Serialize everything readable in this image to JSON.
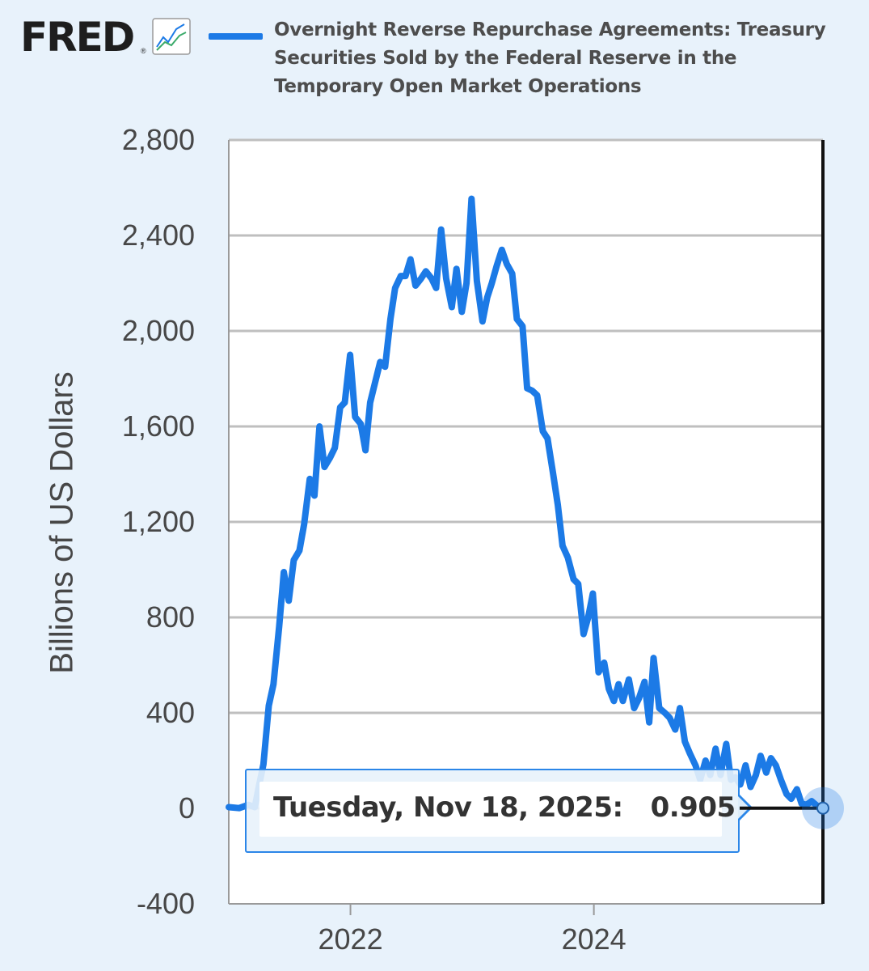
{
  "header": {
    "logo_text": "FRED",
    "logo_mark": "®",
    "logo_icon": "line-chart-icon",
    "series_title": "Overnight Reverse Repurchase Agreements: Treasury Securities Sold by the Federal Reserve in the Temporary Open Market Operations"
  },
  "tooltip": {
    "date": "Tuesday, Nov 18, 2025:",
    "value": "0.905"
  },
  "colors": {
    "series": "#1c7ae6",
    "background": "#e8f2fb",
    "plot_background": "#ffffff",
    "grid": "#bfbfbf"
  },
  "chart_data": {
    "type": "line",
    "ylabel": "Billions of US Dollars",
    "ylim": [
      -400,
      2800
    ],
    "yticks": [
      -400,
      0,
      400,
      800,
      1200,
      1600,
      2000,
      2400,
      2800
    ],
    "ytick_labels": [
      "-400",
      "0",
      "400",
      "800",
      "1,200",
      "1,600",
      "2,000",
      "2,400",
      "2,800"
    ],
    "xlim": [
      "2021-01-01",
      "2025-11-18"
    ],
    "xticks": [
      "2022-01-01",
      "2024-01-01"
    ],
    "xtick_labels": [
      "2022",
      "2024"
    ],
    "grid": true,
    "series": [
      {
        "x": [
          "2021-01-01",
          "2021-02-01",
          "2021-03-01",
          "2021-03-20",
          "2021-04-01",
          "2021-04-15",
          "2021-05-01",
          "2021-05-15",
          "2021-06-01",
          "2021-06-15",
          "2021-06-30",
          "2021-07-15",
          "2021-08-01",
          "2021-08-15",
          "2021-09-01",
          "2021-09-15",
          "2021-09-30",
          "2021-10-15",
          "2021-11-01",
          "2021-11-15",
          "2021-12-01",
          "2021-12-15",
          "2021-12-31",
          "2022-01-15",
          "2022-02-01",
          "2022-02-15",
          "2022-03-01",
          "2022-03-15",
          "2022-03-31",
          "2022-04-15",
          "2022-05-01",
          "2022-05-15",
          "2022-06-01",
          "2022-06-15",
          "2022-06-30",
          "2022-07-15",
          "2022-08-01",
          "2022-08-15",
          "2022-09-01",
          "2022-09-15",
          "2022-09-30",
          "2022-10-15",
          "2022-11-01",
          "2022-11-15",
          "2022-12-01",
          "2022-12-15",
          "2022-12-30",
          "2023-01-15",
          "2023-02-01",
          "2023-02-15",
          "2023-03-01",
          "2023-03-15",
          "2023-03-31",
          "2023-04-15",
          "2023-05-01",
          "2023-05-15",
          "2023-06-01",
          "2023-06-15",
          "2023-06-30",
          "2023-07-15",
          "2023-08-01",
          "2023-08-15",
          "2023-09-01",
          "2023-09-15",
          "2023-09-29",
          "2023-10-15",
          "2023-11-01",
          "2023-11-15",
          "2023-12-01",
          "2023-12-15",
          "2023-12-29",
          "2024-01-15",
          "2024-02-01",
          "2024-02-15",
          "2024-03-01",
          "2024-03-15",
          "2024-03-28",
          "2024-04-15",
          "2024-05-01",
          "2024-05-15",
          "2024-06-01",
          "2024-06-15",
          "2024-06-28",
          "2024-07-15",
          "2024-08-01",
          "2024-08-15",
          "2024-09-01",
          "2024-09-15",
          "2024-09-30",
          "2024-10-15",
          "2024-11-01",
          "2024-11-15",
          "2024-12-01",
          "2024-12-15",
          "2024-12-31",
          "2025-01-15",
          "2025-02-01",
          "2025-02-15",
          "2025-03-01",
          "2025-03-15",
          "2025-03-31",
          "2025-04-15",
          "2025-05-01",
          "2025-05-15",
          "2025-06-01",
          "2025-06-15",
          "2025-06-30",
          "2025-07-15",
          "2025-08-01",
          "2025-08-15",
          "2025-09-01",
          "2025-09-15",
          "2025-09-30",
          "2025-10-15",
          "2025-11-01",
          "2025-11-18"
        ],
        "values": [
          5,
          1,
          15,
          5,
          90,
          185,
          430,
          520,
          760,
          990,
          870,
          1040,
          1080,
          1190,
          1380,
          1310,
          1600,
          1430,
          1470,
          1510,
          1680,
          1700,
          1900,
          1640,
          1610,
          1500,
          1700,
          1780,
          1870,
          1850,
          2050,
          2180,
          2230,
          2230,
          2300,
          2190,
          2220,
          2250,
          2220,
          2180,
          2425,
          2220,
          2100,
          2260,
          2080,
          2200,
          2554,
          2210,
          2040,
          2140,
          2200,
          2270,
          2340,
          2280,
          2240,
          2050,
          2020,
          1760,
          1750,
          1730,
          1580,
          1550,
          1400,
          1270,
          1100,
          1050,
          960,
          940,
          730,
          800,
          900,
          570,
          610,
          500,
          450,
          520,
          450,
          540,
          420,
          460,
          530,
          360,
          630,
          420,
          400,
          380,
          330,
          420,
          280,
          230,
          180,
          120,
          200,
          140,
          250,
          140,
          270,
          120,
          130,
          100,
          180,
          90,
          140,
          220,
          150,
          210,
          180,
          120,
          60,
          40,
          80,
          20,
          15,
          30,
          10,
          0.905
        ]
      }
    ]
  }
}
